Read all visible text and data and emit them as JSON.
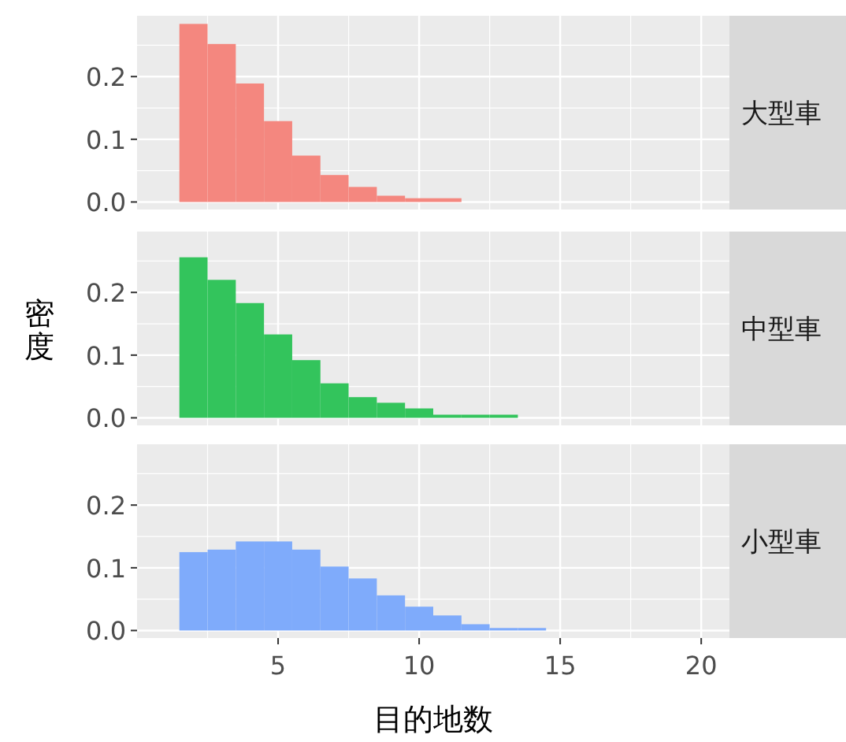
{
  "chart_data": [
    {
      "type": "histogram",
      "title": "大型車",
      "bins": [
        1.5,
        2.5,
        3.5,
        4.5,
        5.5,
        6.5,
        7.5,
        8.5,
        9.5,
        10.5,
        11.5
      ],
      "values": [
        0.284,
        0.252,
        0.189,
        0.129,
        0.074,
        0.043,
        0.024,
        0.01,
        0.006,
        0.006
      ],
      "color": "#f4877f",
      "xlim": [
        0,
        21
      ],
      "ylim": [
        -0.012,
        0.297
      ],
      "xticks": [
        5,
        10,
        15,
        20
      ],
      "yticks": [
        {
          "value": 0,
          "label": "0.0"
        },
        {
          "value": 0.1,
          "label": "0.1"
        },
        {
          "value": 0.2,
          "label": "0.2"
        }
      ],
      "grid": true,
      "tick_labels": "y"
    },
    {
      "type": "histogram",
      "title": "中型車",
      "ylabel": "密度",
      "bins": [
        1.5,
        2.5,
        3.5,
        4.5,
        5.5,
        6.5,
        7.5,
        8.5,
        9.5,
        10.5,
        11.5,
        12.5,
        13.5
      ],
      "values": [
        0.256,
        0.22,
        0.183,
        0.133,
        0.092,
        0.055,
        0.033,
        0.024,
        0.015,
        0.005,
        0.005,
        0.005
      ],
      "color": "#33c45c",
      "xlim": [
        0,
        21
      ],
      "ylim": [
        -0.012,
        0.297
      ],
      "xticks": [
        5,
        10,
        15,
        20
      ],
      "yticks": [
        {
          "value": 0,
          "label": "0.0"
        },
        {
          "value": 0.1,
          "label": "0.1"
        },
        {
          "value": 0.2,
          "label": "0.2"
        }
      ],
      "grid": true,
      "tick_labels": "y"
    },
    {
      "type": "histogram",
      "title": "小型車",
      "xlabel": "目的地数",
      "bins": [
        1.5,
        2.5,
        3.5,
        4.5,
        5.5,
        6.5,
        7.5,
        8.5,
        9.5,
        10.5,
        11.5,
        12.5,
        13.5,
        14.5
      ],
      "values": [
        0.125,
        0.129,
        0.142,
        0.142,
        0.129,
        0.102,
        0.083,
        0.056,
        0.038,
        0.024,
        0.01,
        0.004,
        0.004
      ],
      "color": "#7fabfb",
      "xlim": [
        0,
        21
      ],
      "ylim": [
        -0.012,
        0.297
      ],
      "xticks": [
        5,
        10,
        15,
        20
      ],
      "yticks": [
        {
          "value": 0,
          "label": "0.0"
        },
        {
          "value": 0.1,
          "label": "0.1"
        },
        {
          "value": 0.2,
          "label": "0.2"
        }
      ],
      "grid": true
    }
  ]
}
